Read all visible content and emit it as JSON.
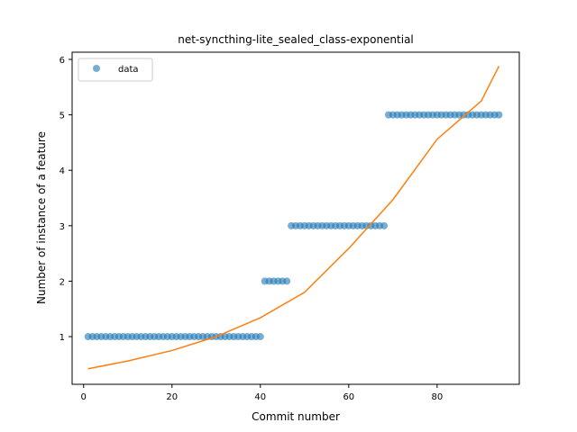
{
  "chart_data": {
    "type": "scatter",
    "title": "net-syncthing-lite_sealed_class-exponential",
    "xlabel": "Commit number",
    "ylabel": "Number of instance of a feature",
    "xlim": [
      -2.6,
      98.6
    ],
    "ylim": [
      0.14,
      6.13
    ],
    "xticks": [
      0,
      20,
      40,
      60,
      80
    ],
    "yticks": [
      1,
      2,
      3,
      4,
      5,
      6
    ],
    "legend": {
      "position": "top-left",
      "entries": [
        "data"
      ]
    },
    "colors": {
      "points": "#1f77b4",
      "fit": "#ff7f0e"
    },
    "series": [
      {
        "name": "data",
        "kind": "scatter",
        "x": [
          1,
          2,
          3,
          4,
          5,
          6,
          7,
          8,
          9,
          10,
          11,
          12,
          13,
          14,
          15,
          16,
          17,
          18,
          19,
          20,
          21,
          22,
          23,
          24,
          25,
          26,
          27,
          28,
          29,
          30,
          31,
          32,
          33,
          34,
          35,
          36,
          37,
          38,
          39,
          40,
          41,
          42,
          43,
          44,
          45,
          46,
          47,
          48,
          49,
          50,
          51,
          52,
          53,
          54,
          55,
          56,
          57,
          58,
          59,
          60,
          61,
          62,
          63,
          64,
          65,
          66,
          67,
          68,
          69,
          70,
          71,
          72,
          73,
          74,
          75,
          76,
          77,
          78,
          79,
          80,
          81,
          82,
          83,
          84,
          85,
          86,
          87,
          88,
          89,
          90,
          91,
          92,
          93,
          94
        ],
        "y": [
          1,
          1,
          1,
          1,
          1,
          1,
          1,
          1,
          1,
          1,
          1,
          1,
          1,
          1,
          1,
          1,
          1,
          1,
          1,
          1,
          1,
          1,
          1,
          1,
          1,
          1,
          1,
          1,
          1,
          1,
          1,
          1,
          1,
          1,
          1,
          1,
          1,
          1,
          1,
          1,
          2,
          2,
          2,
          2,
          2,
          2,
          3,
          3,
          3,
          3,
          3,
          3,
          3,
          3,
          3,
          3,
          3,
          3,
          3,
          3,
          3,
          3,
          3,
          3,
          3,
          3,
          3,
          3,
          5,
          5,
          5,
          5,
          5,
          5,
          5,
          5,
          5,
          5,
          5,
          5,
          5,
          5,
          5,
          5,
          5,
          5,
          5,
          5,
          5,
          5,
          5,
          5,
          5,
          5
        ]
      },
      {
        "kind": "line",
        "x": [
          1,
          10,
          20,
          30,
          40,
          50,
          60,
          70,
          80,
          90,
          94
        ],
        "y": [
          0.42,
          0.56,
          0.75,
          1.0,
          1.34,
          1.8,
          2.59,
          3.47,
          4.56,
          5.25,
          5.88
        ]
      }
    ]
  }
}
